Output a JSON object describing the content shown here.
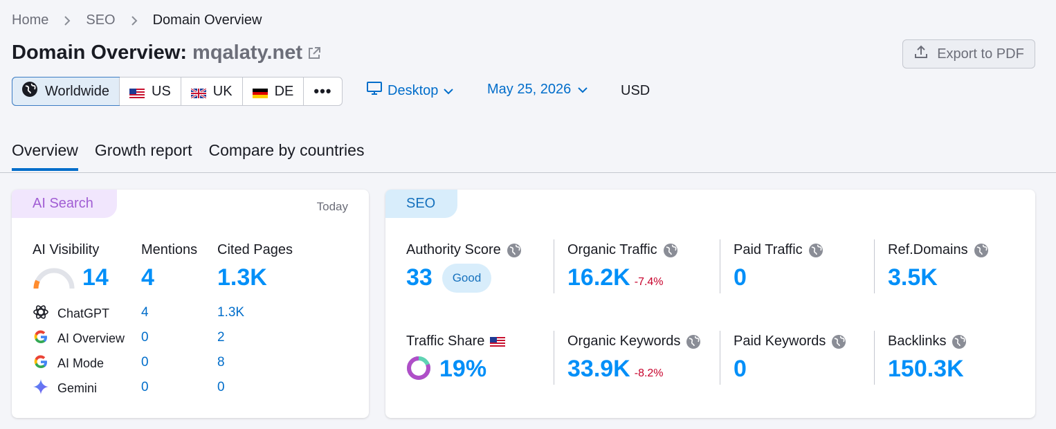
{
  "breadcrumb": [
    "Home",
    "SEO",
    "Domain Overview"
  ],
  "title": {
    "label": "Domain Overview:",
    "domain": "mqalaty.net"
  },
  "export_label": "Export to PDF",
  "databases": [
    {
      "label": "Worldwide",
      "icon": "globe-icon",
      "active": true
    },
    {
      "label": "US",
      "icon": "us-flag-icon"
    },
    {
      "label": "UK",
      "icon": "uk-flag-icon"
    },
    {
      "label": "DE",
      "icon": "de-flag-icon"
    }
  ],
  "more_label": "•••",
  "device_label": "Desktop",
  "date_label": "May 25, 2026",
  "currency": "USD",
  "tabs": [
    "Overview",
    "Growth report",
    "Compare by countries"
  ],
  "ai_card": {
    "pill": "AI Search",
    "today": "Today",
    "headers": {
      "visibility": "AI Visibility",
      "mentions": "Mentions",
      "cited": "Cited Pages"
    },
    "visibility_value": "14",
    "visibility_gauge": 0.14,
    "mentions_value": "4",
    "cited_value": "1.3K",
    "rows": [
      {
        "label": "ChatGPT",
        "icon": "chatgpt-icon",
        "mentions": "4",
        "cited": "1.3K"
      },
      {
        "label": "AI Overview",
        "icon": "google-icon",
        "mentions": "0",
        "cited": "2"
      },
      {
        "label": "AI Mode",
        "icon": "google-icon",
        "mentions": "0",
        "cited": "8"
      },
      {
        "label": "Gemini",
        "icon": "gemini-icon",
        "mentions": "0",
        "cited": "0"
      }
    ]
  },
  "seo_card": {
    "pill": "SEO",
    "authority": {
      "label": "Authority Score",
      "value": "33",
      "badge": "Good"
    },
    "organic_traffic": {
      "label": "Organic Traffic",
      "value": "16.2K",
      "change": "-7.4%"
    },
    "paid_traffic": {
      "label": "Paid Traffic",
      "value": "0"
    },
    "ref_domains": {
      "label": "Ref.Domains",
      "value": "3.5K"
    },
    "traffic_share": {
      "label": "Traffic Share",
      "value": "19%",
      "share": 0.19
    },
    "organic_keywords": {
      "label": "Organic Keywords",
      "value": "33.9K",
      "change": "-8.2%"
    },
    "paid_keywords": {
      "label": "Paid Keywords",
      "value": "0"
    },
    "backlinks": {
      "label": "Backlinks",
      "value": "150.3K"
    }
  },
  "colors": {
    "accent": "#006dca",
    "metric": "#008ff8",
    "negative": "#c7002a",
    "ai_purple": "#a15ed4"
  }
}
